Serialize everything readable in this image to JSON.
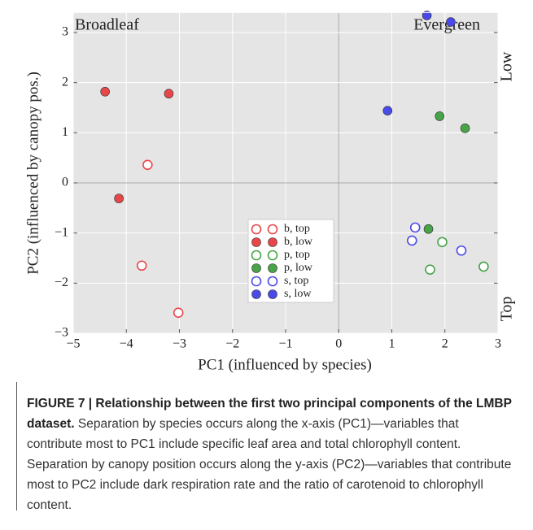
{
  "chart_data": {
    "type": "scatter",
    "xlabel": "PC1 (influenced by species)",
    "ylabel": "PC2 (influenced by canopy pos.)",
    "xlim": [
      -5,
      3
    ],
    "ylim": [
      -3,
      3.4
    ],
    "xticks": [
      {
        "value": -5,
        "label": "−5"
      },
      {
        "value": -4,
        "label": "−4"
      },
      {
        "value": -3,
        "label": "−3"
      },
      {
        "value": -2,
        "label": "−2"
      },
      {
        "value": -1,
        "label": "−1"
      },
      0,
      1,
      2,
      3
    ],
    "yticks": [
      {
        "value": -3,
        "label": "−3"
      },
      {
        "value": -2,
        "label": "−2"
      },
      {
        "value": -1,
        "label": "−1"
      },
      0,
      1,
      2,
      3
    ],
    "grid": true,
    "annotations": [
      "Broadleaf",
      "Evergreen",
      "Low",
      "Top"
    ],
    "series": [
      {
        "name": "b, top",
        "color": "#e8474a",
        "marker": "open",
        "x": [
          -3.6,
          -3.71,
          -3.02
        ],
        "values": [
          0.36,
          -1.65,
          -2.59
        ]
      },
      {
        "name": "b, low",
        "color": "#e8474a",
        "marker": "filled",
        "x": [
          -4.4,
          -3.2,
          -4.14
        ],
        "values": [
          1.82,
          1.78,
          -0.31
        ]
      },
      {
        "name": "p, top",
        "color": "#47a447",
        "marker": "open",
        "x": [
          1.95,
          1.72,
          2.73
        ],
        "values": [
          -1.18,
          -1.73,
          -1.67
        ]
      },
      {
        "name": "p, low",
        "color": "#47a447",
        "marker": "filled",
        "x": [
          1.9,
          2.38,
          1.69
        ],
        "values": [
          1.33,
          1.09,
          -0.92
        ]
      },
      {
        "name": "s, top",
        "color": "#4a4ae8",
        "marker": "open",
        "x": [
          1.44,
          1.38,
          2.31
        ],
        "values": [
          -0.89,
          -1.15,
          -1.35
        ]
      },
      {
        "name": "s, low",
        "color": "#4a4ae8",
        "marker": "filled",
        "x": [
          1.66,
          2.11,
          0.92
        ],
        "values": [
          3.34,
          3.21,
          1.44
        ]
      }
    ]
  },
  "caption": {
    "label": "FIGURE 7 | Relationship between the first two principal components of the LMBP dataset.",
    "text": "Separation by species occurs along the x-axis (PC1)—variables that contribute most to PC1 include specific leaf area and total chlorophyll content. Separation by canopy position occurs along the y-axis (PC2)—variables that contribute most to PC2 include dark respiration rate and the ratio of carotenoid to chlorophyll content."
  }
}
